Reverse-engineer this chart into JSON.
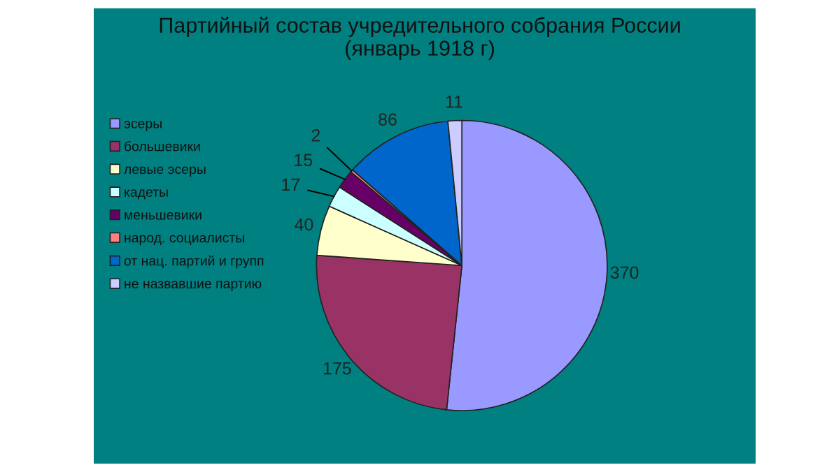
{
  "chart_data": {
    "type": "pie",
    "title": "Партийный состав учредительного собрания России\n(январь 1918 г)",
    "categories": [
      "эсеры",
      "большевики",
      "левые эсеры",
      "кадеты",
      "меньшевики",
      "народ. социалисты",
      "от нац. партий и групп",
      "не назвавшие партию"
    ],
    "values": [
      370,
      175,
      40,
      17,
      15,
      2,
      86,
      11
    ],
    "colors": [
      "#9999ff",
      "#993366",
      "#ffffcc",
      "#ccffff",
      "#660066",
      "#ff8080",
      "#0066cc",
      "#ccccff"
    ],
    "data_labels": true,
    "legend": "left"
  }
}
